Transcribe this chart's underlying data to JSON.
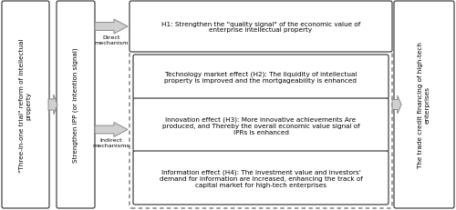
{
  "bg_color": "#ffffff",
  "border_color": "#2b2b2b",
  "box_color": "#ffffff",
  "arrow_gray": "#aaaaaa",
  "arrow_edge": "#777777",
  "dashed_border_color": "#555555",
  "font_size_main": 5.2,
  "font_size_label": 4.6,
  "left_box1_text": "\"Three-in-one trial\" reform of intellectual\nproperty",
  "left_box2_text": "Strengthen IPP (or intention signal)",
  "right_box_text": "The trade credit financing of high-tech\nenterprises",
  "h1_text": "H1: Strengthen the \"quality signal\" of the economic value of\nenterprise intellectual property",
  "h2_text": "Technology market effect (H2): The liquidity of intellectual\nproperty is improved and the mortgageability is enhanced",
  "h3_text": "Innovation effect (H3): More innovative achievements Are\nproduced, and Thereby the overall economic value signal of\nIPRs is enhanced",
  "h4_text": "Information effect (H4): The investment value and investors'\ndemand for information are increased, enhancing the track of\ncapital market for high-tech enterprises",
  "direct_label": "Direct\nmechanism",
  "indirect_label": "Indirect\nmechanisms"
}
